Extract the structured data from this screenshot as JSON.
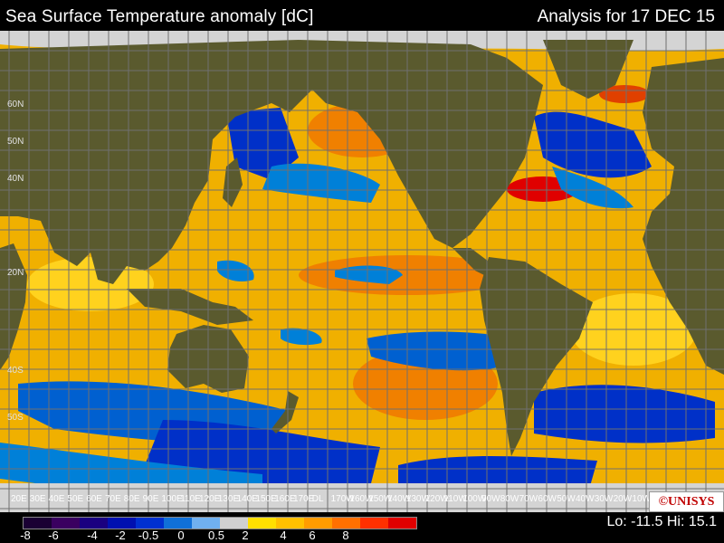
{
  "header": {
    "title": "Sea Surface Temperature anomaly [dC]",
    "analysis": "Analysis for 17 DEC 15"
  },
  "map": {
    "projection": "cylindrical",
    "lon_labels": [
      "20E",
      "30E",
      "40E",
      "50E",
      "60E",
      "70E",
      "80E",
      "90E",
      "100E",
      "110E",
      "120E",
      "130E",
      "140E",
      "150E",
      "160E",
      "170E",
      "DL",
      "170W",
      "160W",
      "150W",
      "140W",
      "130W",
      "120W",
      "110W",
      "100W",
      "90W",
      "80W",
      "70W",
      "60W",
      "50W",
      "40W",
      "30W",
      "20W",
      "10W"
    ],
    "lat_labels": [
      "60N",
      "50N",
      "40N",
      "20N",
      "40S",
      "50S"
    ],
    "colors": {
      "land": "#5a5a2e",
      "ice_nodata": "#d4d4d4",
      "ocean_warm": "#f0b000",
      "ocean_mild": "#ffd21e",
      "ocean_hot": "#f08000",
      "ocean_very_hot": "#e05000",
      "ocean_extreme": "#e00000",
      "ocean_cool": "#0080d8",
      "ocean_cold": "#0030c8",
      "grid": "#707070"
    }
  },
  "legend": {
    "colors": [
      "#1a0033",
      "#3a0060",
      "#1a0080",
      "#0010b0",
      "#0030d0",
      "#1070d8",
      "#70b0f0",
      "#d0d0d0",
      "#ffe000",
      "#ffc000",
      "#ff9c00",
      "#ff7000",
      "#ff3000",
      "#e00000"
    ],
    "ticks": [
      "-8",
      "-6",
      "-4",
      "-2",
      "-0.5",
      "0",
      "0.5",
      "2",
      "4",
      "6",
      "8"
    ]
  },
  "stats": {
    "lo_hi": "Lo: -11.5 Hi: 15.1"
  },
  "logo": {
    "text": "©UNISYS"
  }
}
